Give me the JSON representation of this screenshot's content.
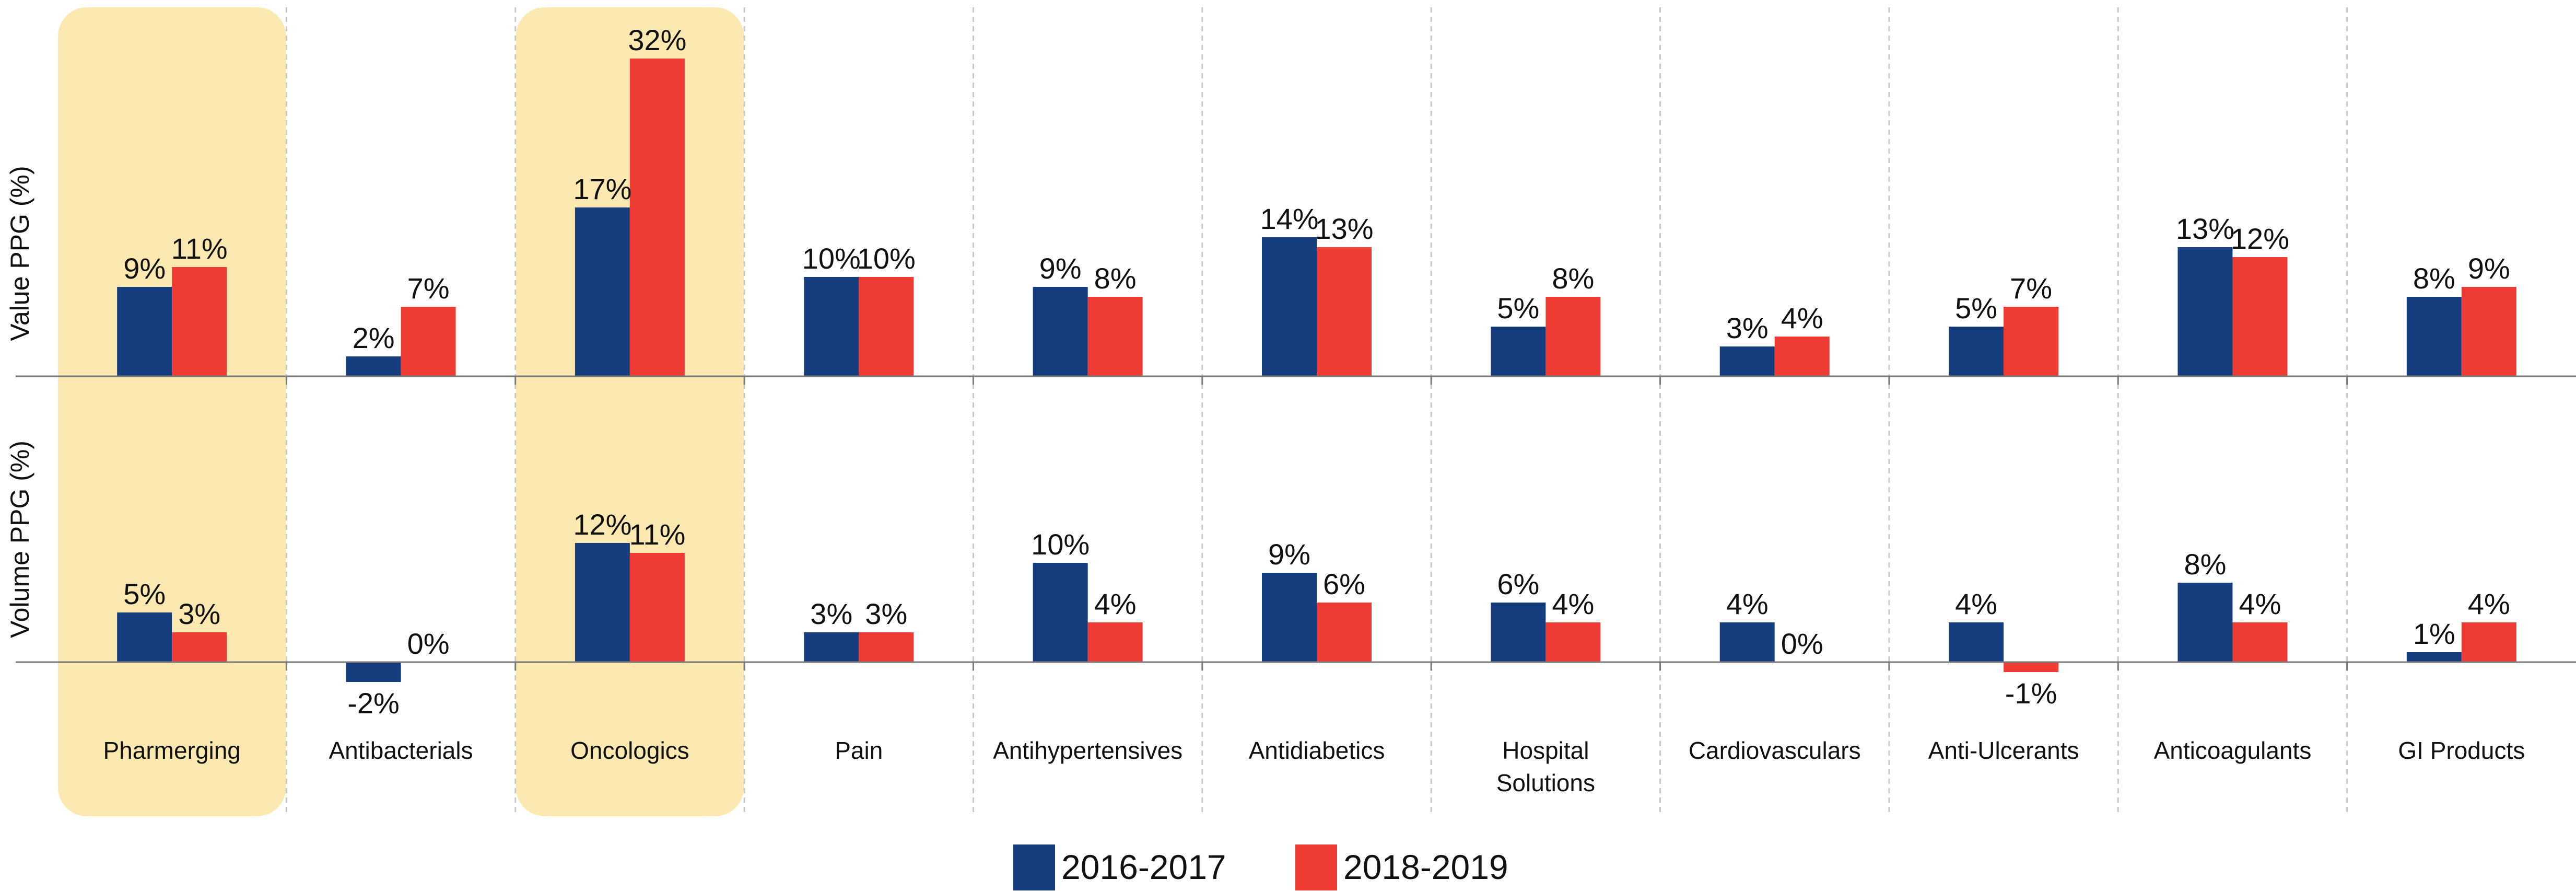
{
  "chart_data": {
    "type": "bar",
    "categories": [
      "Pharmerging",
      "Antibacterials",
      "Oncologics",
      "Pain",
      "Antihypertensives",
      "Antidiabetics",
      "Hospital Solutions",
      "Cardiovasculars",
      "Anti-Ulcerants",
      "Anticoagulants",
      "GI Products"
    ],
    "highlighted_categories": [
      "Pharmerging",
      "Oncologics"
    ],
    "highlight_color": "#FCE9B2",
    "panels": [
      {
        "ylabel": "Value PPG (%)",
        "series": [
          {
            "name": "2016-2017",
            "values": [
              9,
              2,
              17,
              10,
              9,
              14,
              5,
              3,
              5,
              13,
              8
            ]
          },
          {
            "name": "2018-2019",
            "values": [
              11,
              7,
              32,
              10,
              8,
              13,
              8,
              4,
              7,
              12,
              9
            ]
          }
        ]
      },
      {
        "ylabel": "Volume PPG (%)",
        "series": [
          {
            "name": "2016-2017",
            "values": [
              5,
              -2,
              12,
              3,
              10,
              9,
              6,
              4,
              4,
              8,
              1
            ]
          },
          {
            "name": "2018-2019",
            "values": [
              3,
              0,
              11,
              3,
              4,
              6,
              4,
              0,
              -1,
              4,
              4
            ]
          }
        ]
      }
    ],
    "legend": {
      "position": "bottom-center"
    },
    "colors": {
      "2016-2017": "#163D7D",
      "2018-2019": "#EE3B33"
    },
    "grid": false
  }
}
